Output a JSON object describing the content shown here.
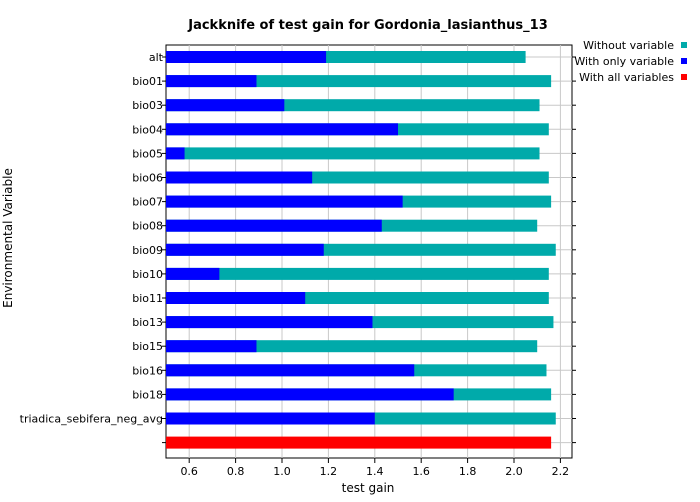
{
  "chart_data": {
    "type": "bar",
    "orientation": "horizontal",
    "title": "Jackknife of test gain for Gordonia_lasianthus_13",
    "xlabel": "test gain",
    "ylabel": "Environmental Variable",
    "xlim": [
      0.5,
      2.25
    ],
    "xticks": [
      0.6,
      0.8,
      1.0,
      1.2,
      1.4,
      1.6,
      1.8,
      2.0,
      2.2
    ],
    "xtick_labels": [
      "0.6",
      "0.8",
      "1.0",
      "1.2",
      "1.4",
      "1.6",
      "1.8",
      "2.0",
      "2.2"
    ],
    "grid": true,
    "legend_position": "right",
    "categories": [
      "alt",
      "bio01",
      "bio03",
      "bio04",
      "bio05",
      "bio06",
      "bio07",
      "bio08",
      "bio09",
      "bio10",
      "bio11",
      "bio13",
      "bio15",
      "bio16",
      "bio18",
      "triadica_sebifera_neg_avg"
    ],
    "series": [
      {
        "name": "Without variable",
        "color": "#00aaaa",
        "values": [
          2.05,
          2.16,
          2.11,
          2.15,
          2.11,
          2.15,
          2.16,
          2.1,
          2.18,
          2.15,
          2.15,
          2.17,
          2.1,
          2.14,
          2.16,
          2.18
        ]
      },
      {
        "name": "With only variable",
        "color": "#0000ff",
        "values": [
          1.19,
          0.89,
          1.01,
          1.5,
          0.58,
          1.13,
          1.52,
          1.43,
          1.18,
          0.73,
          1.1,
          1.39,
          0.89,
          1.57,
          1.74,
          1.4
        ]
      },
      {
        "name": "With all variables",
        "color": "#ff0000",
        "value": 2.16
      }
    ]
  }
}
